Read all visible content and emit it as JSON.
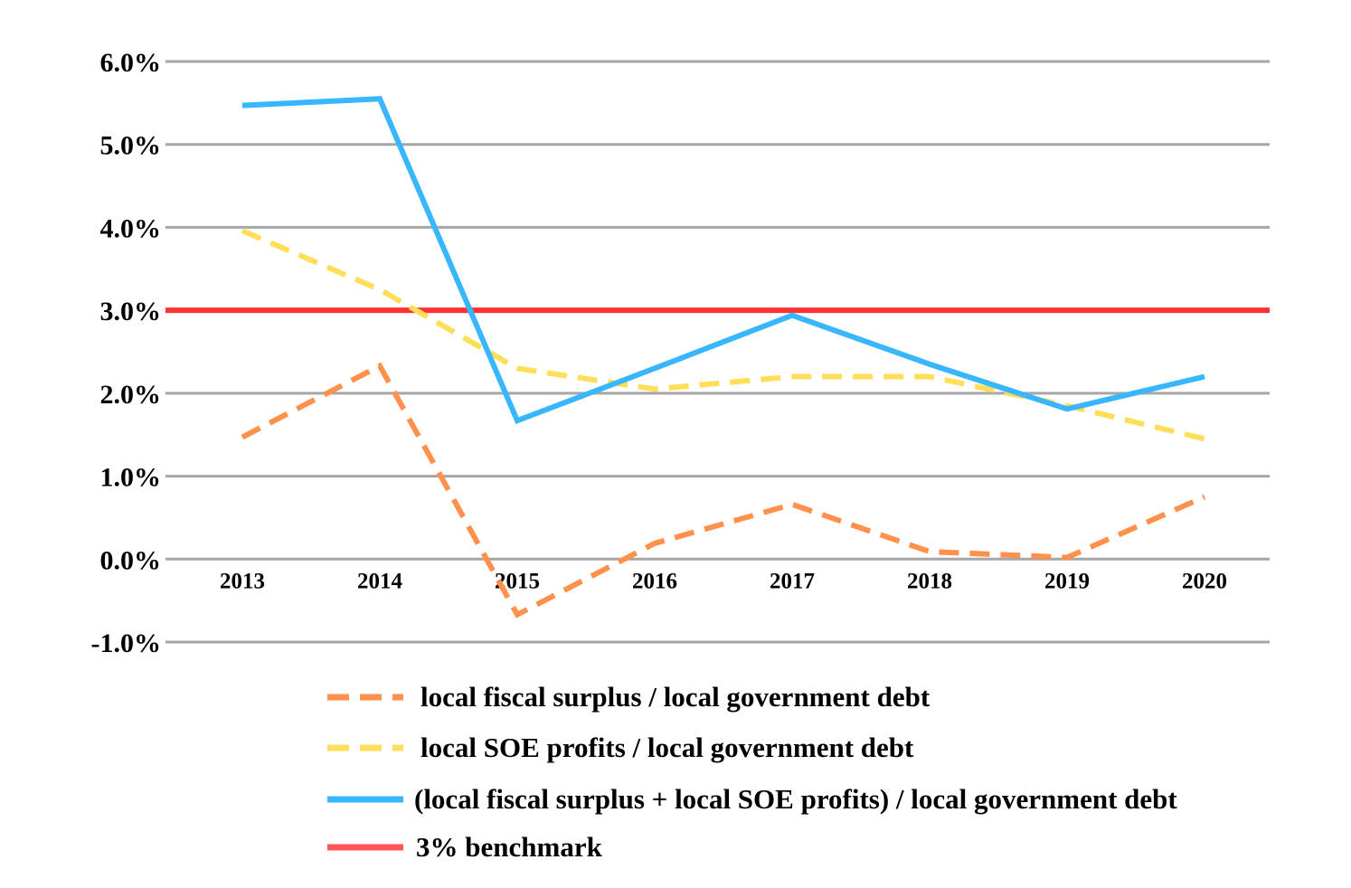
{
  "chart_data": {
    "type": "line",
    "title": "",
    "xlabel": "",
    "ylabel": "",
    "categories": [
      "2013",
      "2014",
      "2015",
      "2016",
      "2017",
      "2018",
      "2019",
      "2020"
    ],
    "ylim": [
      -1.0,
      6.0
    ],
    "y_ticks": [
      "6.0%",
      "5.0%",
      "4.0%",
      "3.0%",
      "2.0%",
      "1.0%",
      "0.0%",
      "-1.0%"
    ],
    "y_tick_values": [
      6,
      5,
      4,
      3,
      2,
      1,
      0,
      -1
    ],
    "grid": true,
    "legend_position": "bottom",
    "series": [
      {
        "name": "local fiscal surplus / local government debt",
        "values": [
          1.47,
          2.33,
          -0.67,
          0.19,
          0.66,
          0.09,
          0.02,
          0.75
        ],
        "color": "#ff914d",
        "style": "dashed"
      },
      {
        "name": "local SOE profits / local government debt",
        "values": [
          3.96,
          3.25,
          2.3,
          2.05,
          2.2,
          2.2,
          1.85,
          1.45
        ],
        "color": "#ffde59",
        "style": "dashed"
      },
      {
        "name": "(local fiscal surplus + local SOE profits) / local government debt",
        "values": [
          5.47,
          5.55,
          1.67,
          2.3,
          2.94,
          2.35,
          1.81,
          2.2
        ],
        "color": "#38b6ff",
        "style": "solid"
      },
      {
        "name": "3% benchmark",
        "values": [
          3.0,
          3.0,
          3.0,
          3.0,
          3.0,
          3.0,
          3.0,
          3.0
        ],
        "color": "#ff3131",
        "legend_color": "#ff5757",
        "style": "solid",
        "full_width": true
      }
    ]
  }
}
